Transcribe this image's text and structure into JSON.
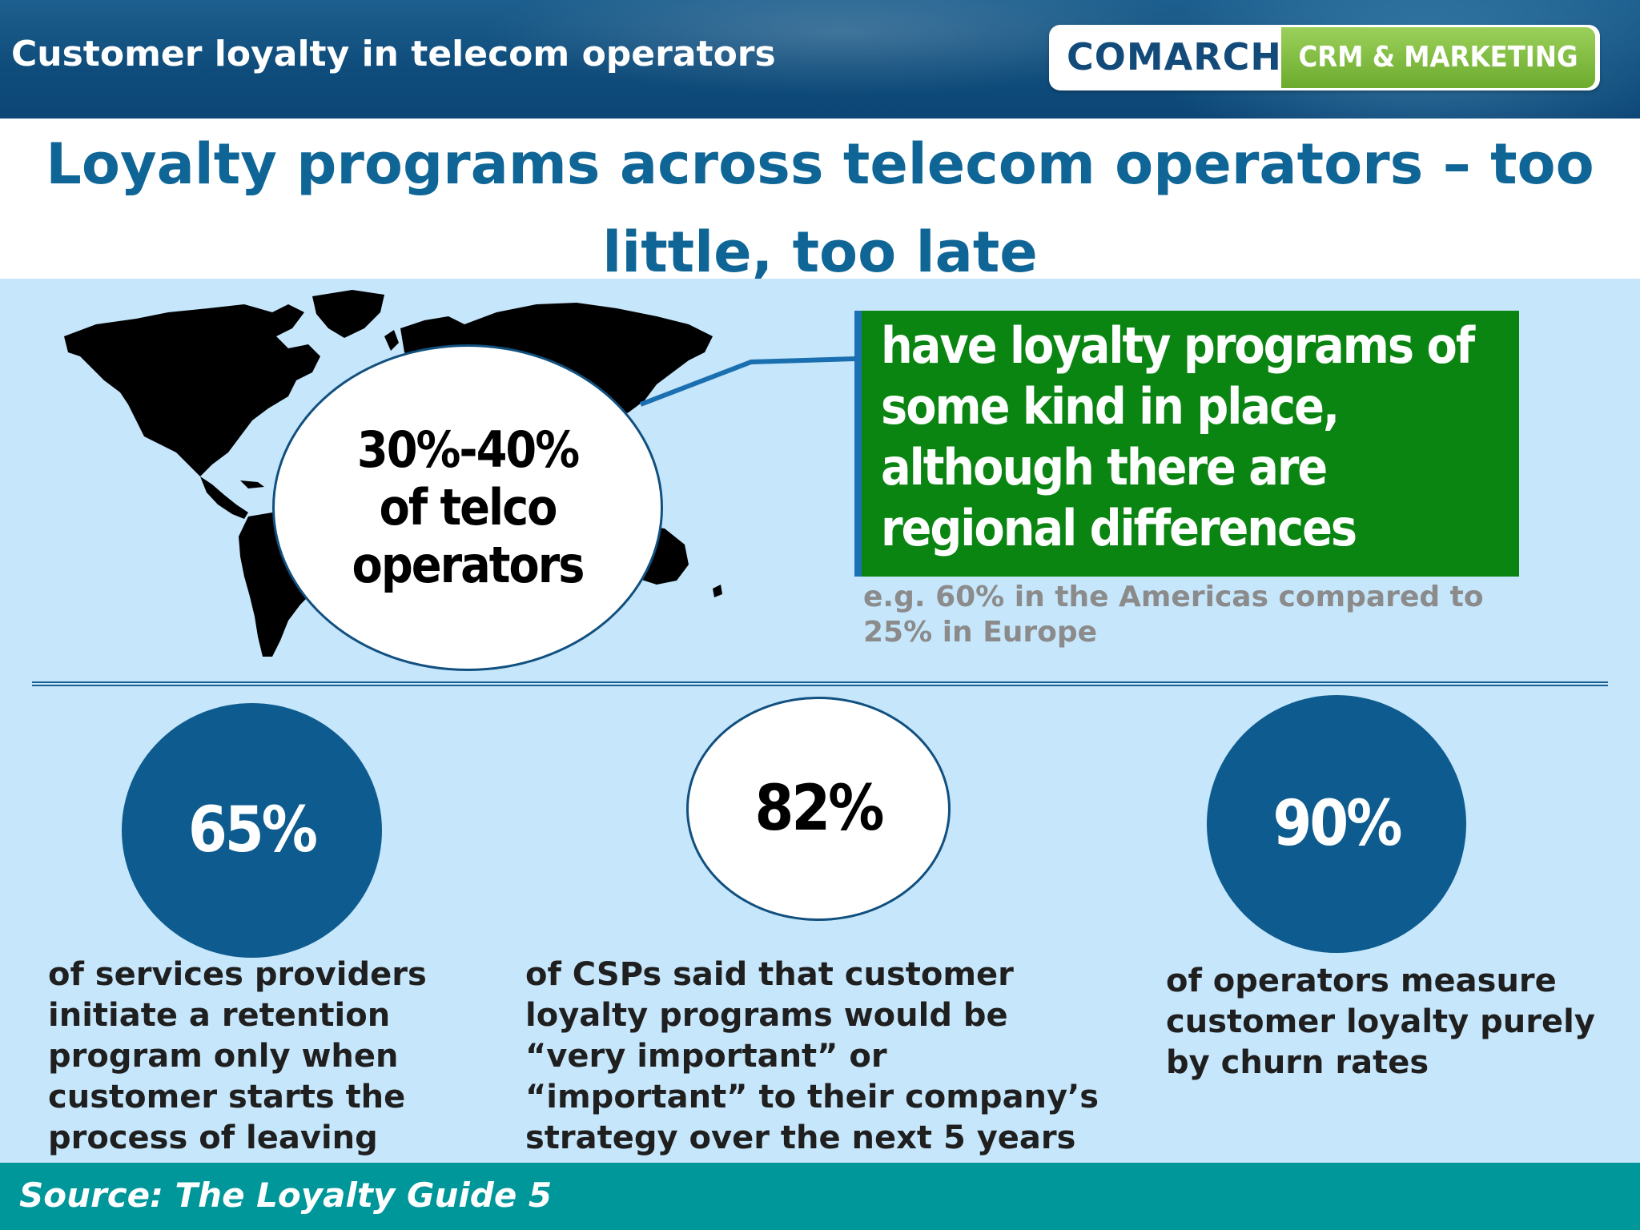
{
  "header": {
    "title": "Customer loyalty in telecom operators",
    "logo_brand": "COMARCH",
    "logo_tag": "CRM & MARKETING"
  },
  "main_title": "Loyalty programs across telecom operators – too little, too late",
  "highlight": {
    "circle_text": "30%-40%\nof telco\noperators",
    "callout_text": "have loyalty programs of some kind in place, although there are regional differences",
    "note": "e.g. 60% in the Americas compared to 25% in Europe"
  },
  "stats": [
    {
      "value": "65%",
      "text": "of services providers initiate a retention program only when customer starts the process of leaving"
    },
    {
      "value": "82%",
      "text": "of CSPs said that customer loyalty programs would be “very important” or “important” to their company’s strategy over the next 5 years"
    },
    {
      "value": "90%",
      "text": "of operators measure customer loyalty purely by churn rates"
    }
  ],
  "footer": {
    "source": "Source: The Loyalty Guide 5"
  },
  "colors": {
    "header_blue": "#0f4d7c",
    "title_blue": "#0f6696",
    "panel_bg": "#c6e6fb",
    "callout_green": "#0a8512",
    "logo_green": "#7fbf3f",
    "footer_teal": "#00979b"
  }
}
